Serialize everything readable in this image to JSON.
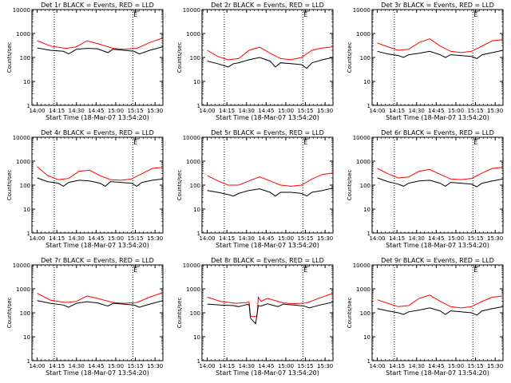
{
  "chart_data": [
    {
      "type": "line",
      "title": "Det 1r BLACK = Events, RED = LLD",
      "ylabel": "Counts/sec",
      "xlabel": "Start Time (18-Mar-07 13:54:20)",
      "yscale": "log",
      "ylim": [
        1,
        10000
      ],
      "y_ticks": [
        "1",
        "10",
        "100",
        "1000",
        "10000"
      ],
      "x_ticks": [
        "14:00",
        "14:15",
        "14:30",
        "14:45",
        "15:00",
        "15:15",
        "15:30"
      ],
      "marker_label": "E",
      "vlines": [
        "14:13",
        "15:13"
      ],
      "series": [
        {
          "color": "#ff0000",
          "x_min": [
            0,
            10,
            22,
            30,
            38,
            46,
            58,
            66,
            76,
            86,
            96
          ],
          "values": [
            500,
            300,
            240,
            280,
            500,
            380,
            240,
            220,
            240,
            420,
            650
          ]
        },
        {
          "color": "#000000",
          "x_min": [
            0,
            10,
            20,
            24,
            30,
            38,
            46,
            54,
            58,
            66,
            74,
            78,
            86,
            96
          ],
          "values": [
            250,
            200,
            180,
            140,
            220,
            240,
            230,
            160,
            220,
            200,
            180,
            140,
            200,
            280
          ]
        }
      ]
    },
    {
      "type": "line",
      "title": "Det 2r BLACK = Events, RED = LLD",
      "ylabel": "Counts/sec",
      "xlabel": "Start Time (18-Mar-07 13:54:20)",
      "yscale": "log",
      "ylim": [
        1,
        10000
      ],
      "y_ticks": [
        "1",
        "10",
        "100",
        "1000",
        "10000"
      ],
      "x_ticks": [
        "14:00",
        "14:15",
        "14:30",
        "14:45",
        "15:00",
        "15:15",
        "15:30"
      ],
      "marker_label": "E",
      "vlines": [
        "14:13",
        "15:13"
      ],
      "series": [
        {
          "color": "#ff0000",
          "x_min": [
            0,
            8,
            16,
            24,
            32,
            40,
            48,
            56,
            64,
            72,
            80,
            88,
            96
          ],
          "values": [
            200,
            110,
            80,
            90,
            200,
            270,
            150,
            90,
            80,
            100,
            200,
            250,
            280
          ]
        },
        {
          "color": "#000000",
          "x_min": [
            0,
            8,
            16,
            20,
            24,
            32,
            40,
            48,
            52,
            56,
            64,
            72,
            76,
            80,
            88,
            96
          ],
          "values": [
            70,
            55,
            40,
            55,
            60,
            80,
            100,
            70,
            40,
            60,
            55,
            50,
            35,
            60,
            80,
            100
          ]
        }
      ]
    },
    {
      "type": "line",
      "title": "Det 3r BLACK = Events, RED = LLD",
      "ylabel": "Counts/sec",
      "xlabel": "Start Time (18-Mar-07 13:54:20)",
      "yscale": "log",
      "ylim": [
        1,
        10000
      ],
      "y_ticks": [
        "1",
        "10",
        "100",
        "1000",
        "10000"
      ],
      "x_ticks": [
        "14:00",
        "14:15",
        "14:30",
        "14:45",
        "15:00",
        "15:15",
        "15:30"
      ],
      "marker_label": "E",
      "vlines": [
        "14:13",
        "15:13"
      ],
      "series": [
        {
          "color": "#ff0000",
          "x_min": [
            0,
            8,
            16,
            24,
            32,
            40,
            48,
            56,
            64,
            72,
            80,
            88,
            96
          ],
          "values": [
            400,
            280,
            200,
            220,
            420,
            600,
            300,
            180,
            160,
            180,
            300,
            500,
            550
          ]
        },
        {
          "color": "#000000",
          "x_min": [
            0,
            8,
            16,
            20,
            24,
            32,
            40,
            48,
            52,
            56,
            64,
            72,
            76,
            80,
            88,
            96
          ],
          "values": [
            180,
            140,
            120,
            100,
            130,
            150,
            180,
            130,
            100,
            130,
            120,
            110,
            90,
            130,
            160,
            200
          ]
        }
      ]
    },
    {
      "type": "line",
      "title": "Det 4r BLACK = Events, RED = LLD",
      "ylabel": "Counts/sec",
      "xlabel": "Start Time (18-Mar-07 13:54:20)",
      "yscale": "log",
      "ylim": [
        1,
        10000
      ],
      "y_ticks": [
        "1",
        "10",
        "100",
        "1000",
        "10000"
      ],
      "x_ticks": [
        "14:00",
        "14:15",
        "14:30",
        "14:45",
        "15:00",
        "15:15",
        "15:30"
      ],
      "marker_label": "E",
      "vlines": [
        "14:13",
        "15:13"
      ],
      "series": [
        {
          "color": "#ff0000",
          "x_min": [
            0,
            8,
            16,
            24,
            32,
            40,
            48,
            56,
            64,
            72,
            80,
            88,
            96
          ],
          "values": [
            600,
            250,
            170,
            190,
            380,
            420,
            250,
            170,
            160,
            180,
            300,
            500,
            550
          ]
        },
        {
          "color": "#000000",
          "x_min": [
            0,
            8,
            16,
            20,
            24,
            32,
            40,
            48,
            52,
            56,
            64,
            72,
            76,
            80,
            88,
            96
          ],
          "values": [
            200,
            140,
            120,
            90,
            130,
            160,
            150,
            120,
            90,
            140,
            130,
            120,
            90,
            130,
            160,
            180
          ]
        }
      ]
    },
    {
      "type": "line",
      "title": "Det 5r BLACK = Events, RED = LLD",
      "ylabel": "Counts/sec",
      "xlabel": "Start Time (18-Mar-07 13:54:20)",
      "yscale": "log",
      "ylim": [
        1,
        10000
      ],
      "y_ticks": [
        "1",
        "10",
        "100",
        "1000",
        "10000"
      ],
      "x_ticks": [
        "14:00",
        "14:15",
        "14:30",
        "14:45",
        "15:00",
        "15:15",
        "15:30"
      ],
      "marker_label": "E",
      "vlines": [
        "14:13",
        "15:13"
      ],
      "series": [
        {
          "color": "#ff0000",
          "x_min": [
            0,
            8,
            16,
            24,
            32,
            40,
            48,
            56,
            64,
            72,
            80,
            88,
            96
          ],
          "values": [
            250,
            150,
            100,
            100,
            150,
            220,
            150,
            100,
            90,
            100,
            180,
            280,
            320
          ]
        },
        {
          "color": "#000000",
          "x_min": [
            0,
            8,
            16,
            20,
            24,
            32,
            40,
            48,
            52,
            56,
            64,
            72,
            76,
            80,
            88,
            96
          ],
          "values": [
            60,
            50,
            40,
            35,
            45,
            60,
            70,
            50,
            35,
            50,
            50,
            45,
            35,
            50,
            60,
            75
          ]
        }
      ]
    },
    {
      "type": "line",
      "title": "Det 6r BLACK = Events, RED = LLD",
      "ylabel": "Counts/sec",
      "xlabel": "Start Time (18-Mar-07 13:54:20)",
      "yscale": "log",
      "ylim": [
        1,
        10000
      ],
      "y_ticks": [
        "1",
        "10",
        "100",
        "1000",
        "10000"
      ],
      "x_ticks": [
        "14:00",
        "14:15",
        "14:30",
        "14:45",
        "15:00",
        "15:15",
        "15:30"
      ],
      "marker_label": "E",
      "vlines": [
        "14:13",
        "15:13"
      ],
      "series": [
        {
          "color": "#ff0000",
          "x_min": [
            0,
            8,
            16,
            24,
            32,
            40,
            48,
            56,
            64,
            72,
            80,
            88,
            96
          ],
          "values": [
            500,
            300,
            200,
            220,
            380,
            450,
            280,
            180,
            170,
            190,
            320,
            500,
            550
          ]
        },
        {
          "color": "#000000",
          "x_min": [
            0,
            8,
            16,
            20,
            24,
            32,
            40,
            48,
            52,
            56,
            64,
            72,
            76,
            80,
            88,
            96
          ],
          "values": [
            200,
            140,
            110,
            90,
            120,
            150,
            160,
            120,
            90,
            130,
            120,
            110,
            85,
            120,
            150,
            180
          ]
        }
      ]
    },
    {
      "type": "line",
      "title": "Det 7r BLACK = Events, RED = LLD",
      "ylabel": "Counts/sec",
      "xlabel": "Start Time (18-Mar-07 13:54:20)",
      "yscale": "log",
      "ylim": [
        1,
        10000
      ],
      "y_ticks": [
        "1",
        "10",
        "100",
        "1000",
        "10000"
      ],
      "x_ticks": [
        "14:00",
        "14:15",
        "14:30",
        "14:45",
        "15:00",
        "15:15",
        "15:30"
      ],
      "marker_label": "E",
      "vlines": [
        "14:13",
        "15:13"
      ],
      "series": [
        {
          "color": "#ff0000",
          "x_min": [
            0,
            10,
            22,
            30,
            38,
            46,
            58,
            66,
            76,
            86,
            96
          ],
          "values": [
            650,
            340,
            270,
            300,
            500,
            400,
            270,
            250,
            270,
            450,
            700
          ]
        },
        {
          "color": "#000000",
          "x_min": [
            0,
            10,
            20,
            24,
            30,
            38,
            46,
            54,
            58,
            66,
            74,
            78,
            86,
            96
          ],
          "values": [
            320,
            250,
            210,
            170,
            250,
            290,
            260,
            190,
            250,
            230,
            210,
            170,
            230,
            320
          ]
        }
      ]
    },
    {
      "type": "line",
      "title": "Det 8r BLACK = Events, RED = LLD",
      "ylabel": "Counts/sec",
      "xlabel": "Start Time (18-Mar-07 13:54:20)",
      "yscale": "log",
      "ylim": [
        1,
        10000
      ],
      "y_ticks": [
        "1",
        "10",
        "100",
        "1000",
        "10000"
      ],
      "x_ticks": [
        "14:00",
        "14:15",
        "14:30",
        "14:45",
        "15:00",
        "15:15",
        "15:30"
      ],
      "marker_label": "E",
      "vlines": [
        "14:13",
        "15:13"
      ],
      "series": [
        {
          "color": "#ff0000",
          "x_min": [
            0,
            10,
            22,
            30,
            32,
            33,
            38,
            39,
            41,
            46,
            58,
            66,
            76,
            86,
            96
          ],
          "values": [
            450,
            300,
            250,
            270,
            280,
            70,
            70,
            450,
            300,
            400,
            260,
            240,
            260,
            420,
            650
          ]
        },
        {
          "color": "#000000",
          "x_min": [
            0,
            10,
            20,
            24,
            30,
            32,
            33,
            37,
            39,
            41,
            46,
            54,
            58,
            66,
            74,
            78,
            86,
            96
          ],
          "values": [
            230,
            210,
            200,
            180,
            220,
            220,
            60,
            35,
            200,
            190,
            240,
            180,
            230,
            210,
            190,
            160,
            210,
            280
          ]
        }
      ]
    },
    {
      "type": "line",
      "title": "Det 9r BLACK = Events, RED = LLD",
      "ylabel": "Counts/sec",
      "xlabel": "Start Time (18-Mar-07 13:54:20)",
      "yscale": "log",
      "ylim": [
        1,
        10000
      ],
      "y_ticks": [
        "1",
        "10",
        "100",
        "1000",
        "10000"
      ],
      "x_ticks": [
        "14:00",
        "14:15",
        "14:30",
        "14:45",
        "15:00",
        "15:15",
        "15:30"
      ],
      "marker_label": "E",
      "vlines": [
        "14:13",
        "15:13"
      ],
      "series": [
        {
          "color": "#ff0000",
          "x_min": [
            0,
            8,
            16,
            24,
            32,
            40,
            48,
            56,
            64,
            72,
            80,
            88,
            96
          ],
          "values": [
            350,
            250,
            180,
            200,
            400,
            550,
            300,
            180,
            160,
            180,
            300,
            450,
            500
          ]
        },
        {
          "color": "#000000",
          "x_min": [
            0,
            8,
            16,
            20,
            24,
            32,
            40,
            48,
            52,
            56,
            64,
            72,
            76,
            80,
            88,
            96
          ],
          "values": [
            150,
            120,
            100,
            85,
            110,
            130,
            160,
            120,
            85,
            120,
            110,
            100,
            80,
            120,
            150,
            180
          ]
        }
      ]
    }
  ]
}
